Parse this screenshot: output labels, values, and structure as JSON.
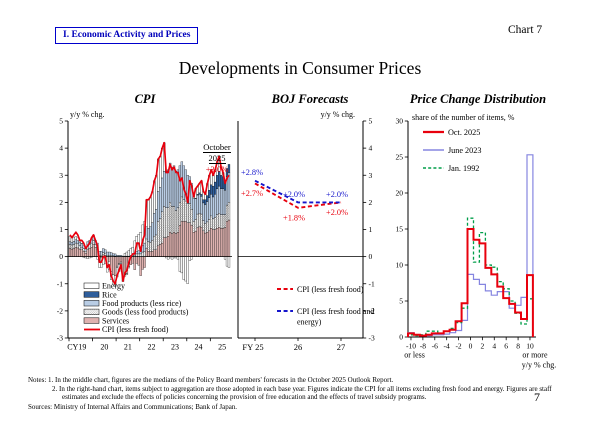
{
  "page": {
    "section_label": "I. Economic Activity and Prices",
    "chart_label": "Chart 7",
    "title": "Developments in Consumer Prices",
    "page_number": "7"
  },
  "notes": {
    "line1": "Notes:  1. In the middle chart, figures are the medians of the Policy Board members' forecasts in the October 2025 Outlook Report.",
    "line2": "2. In the right-hand chart, items subject to aggregation are those adopted in each base year. Figures indicate the CPI for all items excluding fresh food and energy. Figures are staff",
    "line3": "estimates and exclude the effects of policies concerning the provision of free education and the effects of travel subsidy programs.",
    "sources": "Sources: Ministry of Internal Affairs and Communications; Bank of Japan."
  },
  "chart_data": [
    {
      "type": "bar",
      "title": "CPI",
      "ylabel": "y/y % chg.",
      "ylim": [
        -3,
        5
      ],
      "x_labels": [
        "CY19",
        "20",
        "21",
        "22",
        "23",
        "24",
        "25"
      ],
      "months_start": "2019-01",
      "months_end": "2025-10",
      "october_annotation": {
        "line1": "October",
        "line2": "2025",
        "value": "+3.0%"
      },
      "stack_order": [
        4,
        3,
        2,
        1,
        0
      ],
      "series": [
        {
          "name": "Energy",
          "color": "#ffffff",
          "values": [
            0.2,
            0.18,
            0.15,
            0.12,
            0.1,
            0.05,
            0.02,
            -0.02,
            -0.05,
            -0.08,
            -0.05,
            -0.02,
            0.05,
            0.0,
            -0.1,
            -0.25,
            -0.35,
            -0.3,
            -0.25,
            -0.25,
            -0.3,
            -0.3,
            -0.35,
            -0.4,
            -0.35,
            -0.25,
            -0.1,
            0.0,
            0.1,
            0.15,
            0.2,
            0.25,
            0.3,
            0.45,
            0.55,
            0.6,
            0.65,
            0.75,
            0.8,
            1.0,
            1.05,
            1.1,
            1.15,
            1.2,
            1.25,
            1.2,
            1.15,
            1.1,
            1.05,
            -0.05,
            -0.1,
            -0.05,
            -0.1,
            -0.05,
            -0.05,
            -0.1,
            -0.55,
            -0.6,
            -0.85,
            -0.9,
            -1.0,
            -0.15,
            -0.1,
            0.05,
            0.35,
            0.3,
            0.35,
            0.5,
            0.3,
            0.2,
            0.45,
            0.55,
            0.55,
            0.4,
            0.45,
            0.5,
            0.55,
            0.3,
            0.15,
            -0.1,
            -0.35,
            -0.4
          ]
        },
        {
          "name": "Rice",
          "color": "#2f5e9b",
          "values": [
            0,
            0,
            0,
            0,
            0,
            0,
            0,
            0,
            0,
            0,
            0,
            0,
            0,
            0,
            0,
            0,
            0,
            0,
            0,
            0,
            0,
            0,
            0,
            0,
            0,
            0,
            0,
            0,
            0,
            0,
            0,
            0,
            0,
            0,
            0,
            0,
            0,
            0,
            0,
            0,
            0,
            0,
            0,
            0,
            0,
            0,
            0,
            0,
            0,
            0,
            0,
            0,
            0,
            0,
            0,
            0,
            0,
            0,
            0,
            0,
            0,
            0,
            0,
            0,
            0.02,
            0.03,
            0.05,
            0.08,
            0.12,
            0.18,
            0.22,
            0.28,
            0.35,
            0.4,
            0.45,
            0.5,
            0.55,
            0.5,
            0.45,
            0.35,
            0.3,
            0.3
          ]
        },
        {
          "name": "Food products (less rice)",
          "color": "#b9cde5",
          "values": [
            0.1,
            0.1,
            0.12,
            0.12,
            0.12,
            0.12,
            0.12,
            0.1,
            0.1,
            0.12,
            0.15,
            0.15,
            0.15,
            0.15,
            0.15,
            0.15,
            0.15,
            0.15,
            0.12,
            0.12,
            0.12,
            0.1,
            0.08,
            0.08,
            0.05,
            0.05,
            0.05,
            0.02,
            0.02,
            0.02,
            0.02,
            0.05,
            0.05,
            0.08,
            0.1,
            0.12,
            0.15,
            0.25,
            0.3,
            0.45,
            0.5,
            0.57,
            0.65,
            0.85,
            0.95,
            1.1,
            1.15,
            1.25,
            1.3,
            1.35,
            1.4,
            1.45,
            1.45,
            1.5,
            1.45,
            1.4,
            1.35,
            1.3,
            1.25,
            1.15,
            1.05,
            1.0,
            0.95,
            0.85,
            0.75,
            0.7,
            0.7,
            0.65,
            0.65,
            0.7,
            0.75,
            0.8,
            0.8,
            0.8,
            0.85,
            0.95,
            1.0,
            0.95,
            0.95,
            0.9,
            1.05,
            1.1
          ]
        },
        {
          "name": "Goods (less food products)",
          "color": "dots",
          "values": [
            0.15,
            0.15,
            0.15,
            0.15,
            0.15,
            0.12,
            0.1,
            0.1,
            0.08,
            0.15,
            0.15,
            0.15,
            0.15,
            0.12,
            0.1,
            0.05,
            0.05,
            0.08,
            0.08,
            0.05,
            0.05,
            0.05,
            0.03,
            0.02,
            -0.05,
            -0.05,
            -0.05,
            -0.05,
            -0.05,
            -0.05,
            -0.05,
            0.0,
            0.0,
            0.05,
            0.1,
            0.1,
            0.1,
            0.17,
            0.2,
            0.35,
            0.35,
            0.35,
            0.4,
            0.5,
            0.55,
            0.9,
            0.95,
            1.15,
            1.15,
            1.1,
            1.05,
            1.1,
            1.0,
            0.95,
            0.85,
            0.9,
            0.85,
            0.9,
            0.8,
            0.75,
            0.7,
            0.7,
            0.6,
            0.4,
            0.45,
            0.5,
            0.5,
            0.48,
            0.38,
            0.35,
            0.38,
            0.42,
            0.45,
            0.4,
            0.45,
            0.5,
            0.52,
            0.5,
            0.5,
            0.48,
            0.6,
            0.65
          ]
        },
        {
          "name": "Services",
          "color": "#dfb2b0",
          "values": [
            0.3,
            0.28,
            0.3,
            0.35,
            0.32,
            0.28,
            0.25,
            0.2,
            0.12,
            0.28,
            0.3,
            0.35,
            0.45,
            0.33,
            0.25,
            -0.15,
            -0.05,
            0.07,
            0.05,
            -0.32,
            -0.17,
            -0.55,
            -0.66,
            -0.7,
            -0.35,
            -0.25,
            -0.2,
            -0.87,
            -0.67,
            -0.62,
            -0.37,
            -0.3,
            -0.25,
            -0.48,
            -0.25,
            -0.32,
            -0.7,
            -0.47,
            -0.4,
            0.3,
            0.2,
            0.18,
            0.2,
            0.25,
            0.25,
            0.4,
            0.45,
            0.5,
            0.7,
            0.7,
            0.75,
            0.9,
            0.85,
            0.9,
            0.85,
            0.9,
            1.15,
            1.3,
            1.3,
            1.3,
            1.25,
            1.25,
            1.15,
            0.9,
            0.93,
            1.07,
            1.1,
            1.09,
            0.95,
            0.87,
            0.9,
            0.95,
            1.05,
            1.0,
            1.0,
            1.05,
            1.08,
            1.05,
            1.05,
            1.07,
            1.3,
            1.35
          ]
        }
      ],
      "line": {
        "name": "CPI (less fresh food)",
        "color": "#e8000d",
        "values": [
          0.8,
          0.7,
          0.8,
          0.9,
          0.8,
          0.6,
          0.6,
          0.5,
          0.3,
          0.4,
          0.5,
          0.7,
          0.8,
          0.6,
          0.4,
          -0.2,
          -0.2,
          0.0,
          0.0,
          -0.4,
          -0.3,
          -0.7,
          -0.9,
          -1.0,
          -0.7,
          -0.5,
          -0.3,
          -0.9,
          -0.6,
          -0.5,
          -0.2,
          0.0,
          0.1,
          0.1,
          0.5,
          0.5,
          0.2,
          0.6,
          0.8,
          2.1,
          2.1,
          2.2,
          2.4,
          2.8,
          3.0,
          3.6,
          3.7,
          4.0,
          4.2,
          3.1,
          3.1,
          3.4,
          3.2,
          3.3,
          3.1,
          3.1,
          2.8,
          2.9,
          2.5,
          2.3,
          2.0,
          2.8,
          2.6,
          2.2,
          2.5,
          2.6,
          2.7,
          2.8,
          2.4,
          2.3,
          2.7,
          3.0,
          3.2,
          3.0,
          3.2,
          3.5,
          3.7,
          3.3,
          3.1,
          2.7,
          2.9,
          3.0
        ]
      }
    },
    {
      "type": "line",
      "title": "BOJ Forecasts",
      "ylabel": "y/y % chg.",
      "ylim": [
        -3,
        5
      ],
      "x_labels": [
        "FY 25",
        "26",
        "27"
      ],
      "series": [
        {
          "name": "CPI (less fresh food)",
          "color": "#e8000d",
          "dash": "4,2.6",
          "values": [
            2.7,
            1.8,
            2.0
          ],
          "labels": [
            "+2.7%",
            "+1.8%",
            "+2.0%"
          ],
          "label_pos": "below"
        },
        {
          "name": "CPI (less fresh food and energy)",
          "name_line2": "energy)",
          "name_line1": "CPI (less fresh food and",
          "color": "#1515cc",
          "dash": "4,2.6",
          "values": [
            2.8,
            2.0,
            2.0
          ],
          "labels": [
            "+2.8%",
            "+2.0%",
            "+2.0%"
          ],
          "label_pos": "above"
        }
      ]
    },
    {
      "type": "step-histogram",
      "title": "Price Change Distribution",
      "ylabel": "share of the number of items, %",
      "ylim": [
        0,
        30
      ],
      "bin_start": -10,
      "bin_width": 1,
      "x_ticks": [
        -10,
        -8,
        -6,
        -4,
        -2,
        0,
        2,
        4,
        6,
        8,
        10
      ],
      "x_note_left": "or less",
      "x_note_right": "or more",
      "x_axis_label": "y/y % chg.",
      "series": [
        {
          "name": "June 2023",
          "color": "#8585e0",
          "dash": "none",
          "width": 1.2,
          "values": [
            0.6,
            0.3,
            0.2,
            0.2,
            0.3,
            0.3,
            0.4,
            0.6,
            0.9,
            2.3,
            8.7,
            8.0,
            7.3,
            6.4,
            5.8,
            6.3,
            6.3,
            4.0,
            4.4,
            5.5,
            25.3
          ]
        },
        {
          "name": "Jan. 1992",
          "color": "#009e49",
          "dash": "3,2.2",
          "width": 1.3,
          "values": [
            0.3,
            0.2,
            0.3,
            0.8,
            0.8,
            0.5,
            0.8,
            1.2,
            2.0,
            4.0,
            16.5,
            10.4,
            14.5,
            10.0,
            9.7,
            7.7,
            6.7,
            5.0,
            3.3,
            1.8,
            5.3
          ]
        },
        {
          "name": "Oct. 2025",
          "color": "#e8000d",
          "dash": "none",
          "width": 2,
          "values": [
            0.5,
            0.3,
            0.2,
            0.3,
            0.5,
            0.5,
            0.8,
            1.0,
            2.2,
            4.7,
            15.0,
            13.5,
            13.0,
            9.6,
            8.7,
            7.0,
            5.4,
            4.6,
            3.4,
            2.5,
            8.6
          ]
        }
      ],
      "legend_order": [
        "Oct. 2025",
        "June 2023",
        "Jan. 1992"
      ]
    }
  ]
}
